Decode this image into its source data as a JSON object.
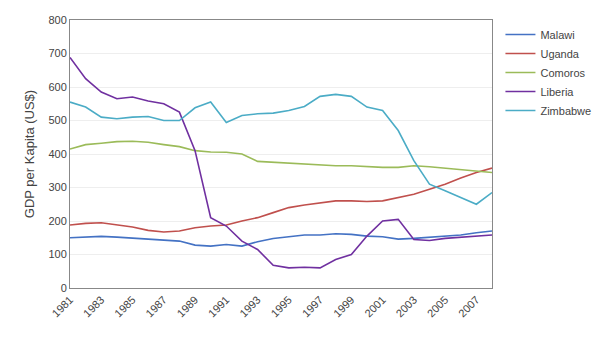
{
  "chart_data": {
    "type": "line",
    "ylabel": "GDP per Kapita (US$)",
    "x": [
      1981,
      1982,
      1983,
      1984,
      1985,
      1986,
      1987,
      1988,
      1989,
      1990,
      1991,
      1992,
      1993,
      1994,
      1995,
      1996,
      1997,
      1998,
      1999,
      2000,
      2001,
      2002,
      2003,
      2004,
      2005,
      2006,
      2007,
      2008
    ],
    "series": [
      {
        "name": "Malawi",
        "color": "#4472C4",
        "values": [
          150,
          152,
          154,
          152,
          149,
          146,
          145,
          140,
          128,
          125,
          130,
          125,
          138,
          148,
          153,
          158,
          158,
          162,
          160,
          155,
          153,
          146,
          148,
          152,
          155,
          158,
          165,
          170
        ]
      },
      {
        "name": "Uganda",
        "color": "#C0504D",
        "values": [
          188,
          193,
          195,
          188,
          182,
          172,
          167,
          170,
          180,
          185,
          188,
          200,
          210,
          225,
          240,
          248,
          255,
          260,
          260,
          258,
          260,
          270,
          280,
          295,
          310,
          328,
          345,
          358
        ]
      },
      {
        "name": "Comoros",
        "color": "#9BBB59",
        "values": [
          415,
          428,
          432,
          437,
          438,
          435,
          428,
          422,
          410,
          406,
          405,
          400,
          378,
          375,
          372,
          370,
          368,
          365,
          365,
          362,
          360,
          360,
          365,
          362,
          358,
          352,
          348,
          345
        ]
      },
      {
        "name": "Liberia",
        "color": "#7030A0",
        "values": [
          688,
          625,
          585,
          565,
          570,
          558,
          550,
          525,
          410,
          210,
          185,
          140,
          115,
          68,
          60,
          62,
          60,
          85,
          100,
          155,
          200,
          205,
          145,
          142,
          148,
          152,
          155,
          158
        ]
      },
      {
        "name": "Zimbabwe",
        "color": "#4BACC6",
        "values": [
          555,
          540,
          510,
          505,
          510,
          512,
          500,
          500,
          538,
          555,
          494,
          515,
          520,
          522,
          530,
          542,
          572,
          578,
          572,
          540,
          530,
          470,
          380,
          310,
          290,
          270,
          250,
          285
        ]
      }
    ],
    "xlim": [
      1981,
      2008
    ],
    "xticks": [
      1981,
      1983,
      1985,
      1987,
      1989,
      1991,
      1993,
      1995,
      1997,
      1999,
      2001,
      2003,
      2005,
      2007
    ],
    "ylim": [
      0,
      800
    ],
    "yticks": [
      0,
      100,
      200,
      300,
      400,
      500,
      600,
      700,
      800
    ],
    "grid": "y",
    "legend": "right"
  }
}
